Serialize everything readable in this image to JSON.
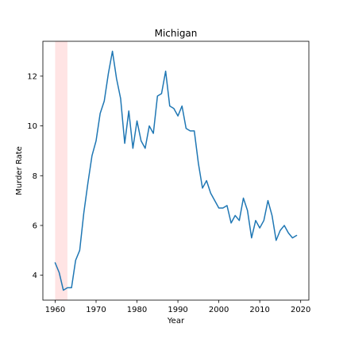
{
  "chart_data": {
    "type": "line",
    "title": "Michigan",
    "xlabel": "Year",
    "ylabel": "Murder Rate",
    "xlim": [
      1957,
      2022
    ],
    "ylim": [
      3.0,
      13.4
    ],
    "xticks": [
      1960,
      1970,
      1980,
      1990,
      2000,
      2010,
      2020
    ],
    "yticks": [
      4,
      6,
      8,
      10,
      12
    ],
    "grid": false,
    "highlight_band": {
      "x_start": 1960,
      "x_end": 1963,
      "color": "#ffe4e4"
    },
    "series": [
      {
        "color": "#1f77b4",
        "x": [
          1960,
          1961,
          1962,
          1963,
          1964,
          1965,
          1966,
          1967,
          1968,
          1969,
          1970,
          1971,
          1972,
          1973,
          1974,
          1975,
          1976,
          1977,
          1978,
          1979,
          1980,
          1981,
          1982,
          1983,
          1984,
          1985,
          1986,
          1987,
          1988,
          1989,
          1990,
          1991,
          1992,
          1993,
          1994,
          1995,
          1996,
          1997,
          1998,
          1999,
          2000,
          2001,
          2002,
          2003,
          2004,
          2005,
          2006,
          2007,
          2008,
          2009,
          2010,
          2011,
          2012,
          2013,
          2014,
          2015,
          2016,
          2017,
          2018,
          2019
        ],
        "y": [
          4.5,
          4.1,
          3.4,
          3.5,
          3.5,
          4.6,
          5.0,
          6.5,
          7.7,
          8.8,
          9.4,
          10.5,
          11.0,
          12.1,
          13.0,
          11.9,
          11.1,
          9.3,
          10.6,
          9.1,
          10.2,
          9.4,
          9.1,
          10.0,
          9.7,
          11.2,
          11.3,
          12.2,
          10.8,
          10.7,
          10.4,
          10.8,
          9.9,
          9.8,
          9.8,
          8.5,
          7.5,
          7.8,
          7.3,
          7.0,
          6.7,
          6.7,
          6.8,
          6.1,
          6.4,
          6.2,
          7.1,
          6.6,
          5.5,
          6.2,
          5.9,
          6.2,
          7.0,
          6.4,
          5.4,
          5.8,
          6.0,
          5.7,
          5.5,
          5.6
        ]
      }
    ]
  }
}
